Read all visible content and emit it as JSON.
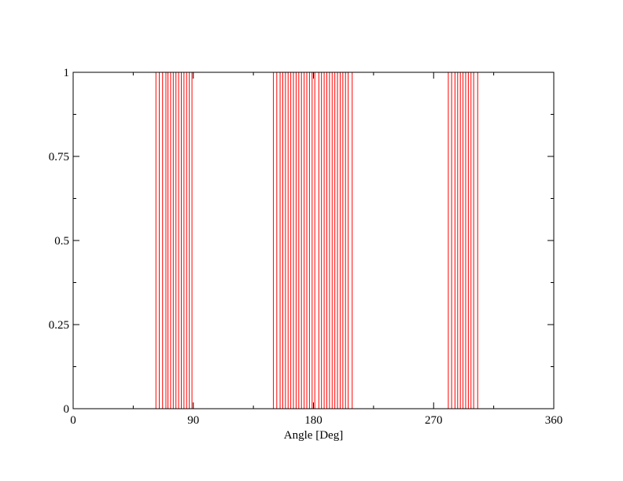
{
  "chart_data": {
    "type": "bar",
    "title": "",
    "xlabel": "Angle [Deg]",
    "ylabel": "",
    "xlim": [
      0,
      360
    ],
    "ylim": [
      0,
      1
    ],
    "x_ticks": [
      {
        "value": 0,
        "label": "0"
      },
      {
        "value": 90,
        "label": "90"
      },
      {
        "value": 180,
        "label": "180"
      },
      {
        "value": 270,
        "label": "270"
      },
      {
        "value": 360,
        "label": "360"
      }
    ],
    "y_ticks": [
      {
        "value": 0,
        "label": "0"
      },
      {
        "value": 0.25,
        "label": "0.25"
      },
      {
        "value": 0.5,
        "label": "0.5"
      },
      {
        "value": 0.75,
        "label": "0.75"
      },
      {
        "value": 1,
        "label": "1"
      }
    ],
    "x_minor_step": 45,
    "y_minor_step": 0.125,
    "grid": false,
    "bar_color": "#ff0000",
    "series": [
      {
        "x": [
          62,
          64.5,
          67,
          69.5,
          71,
          73,
          75,
          77,
          79,
          81,
          83,
          85,
          87,
          89,
          150,
          152.5,
          155,
          157,
          159,
          161,
          163,
          165,
          167,
          169,
          171,
          173,
          175,
          177,
          179,
          181,
          184,
          186,
          188,
          190,
          192,
          194,
          196,
          198,
          200,
          202,
          204,
          206,
          209,
          281,
          283.5,
          286,
          288,
          290,
          292,
          294,
          296,
          298,
          300,
          303
        ],
        "values": [
          1,
          1,
          1,
          1,
          1,
          1,
          1,
          1,
          1,
          1,
          1,
          1,
          1,
          1,
          1,
          1,
          1,
          1,
          1,
          1,
          1,
          1,
          1,
          1,
          1,
          1,
          1,
          1,
          1,
          1,
          1,
          1,
          1,
          1,
          1,
          1,
          1,
          1,
          1,
          1,
          1,
          1,
          1,
          1,
          1,
          1,
          1,
          1,
          1,
          1,
          1,
          1,
          1,
          1
        ]
      }
    ]
  }
}
